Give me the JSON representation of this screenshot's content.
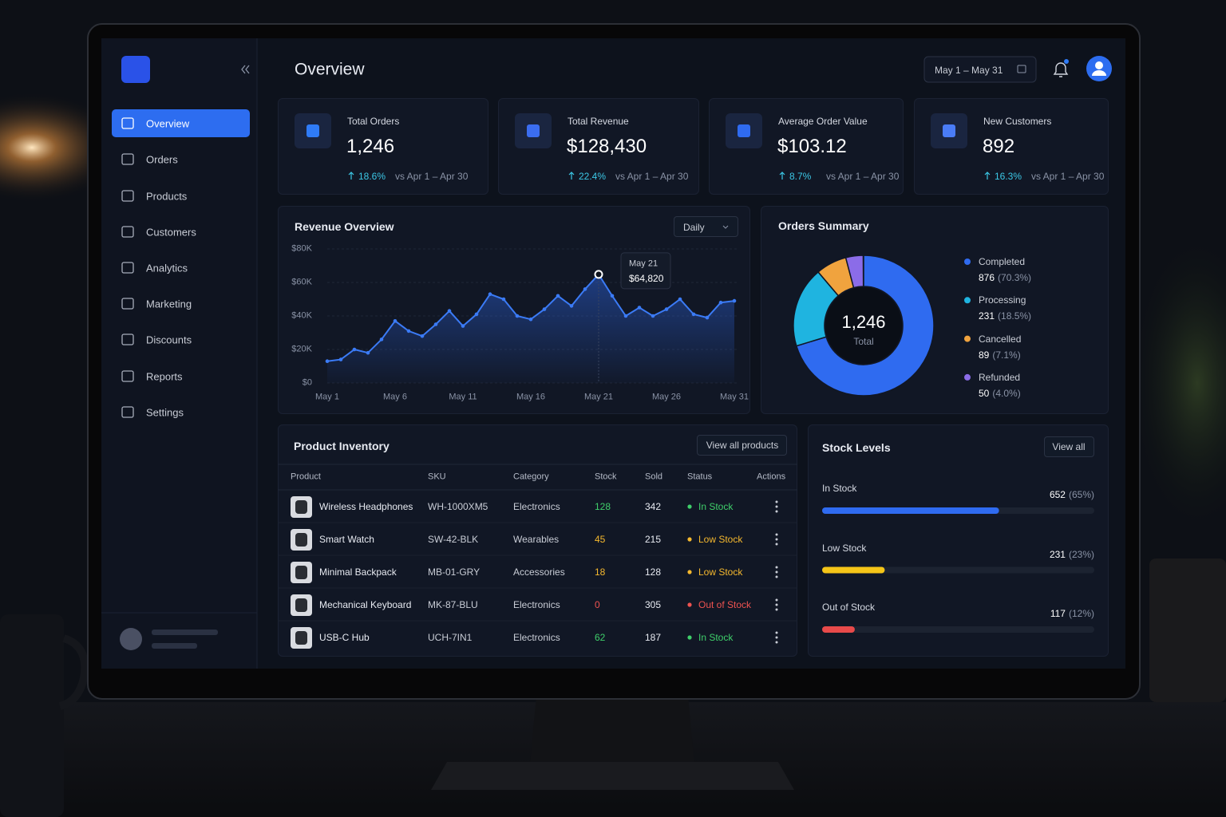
{
  "sidebar": {
    "nav": [
      "Overview",
      "Orders",
      "Products",
      "Customers",
      "Analytics",
      "Marketing",
      "Discounts",
      "Reports",
      "Settings"
    ]
  },
  "header": {
    "title": "Overview",
    "date_range": "May 1 – May 31"
  },
  "kpis": [
    {
      "label": "Total Orders",
      "value": "1,246",
      "change": "18.6%",
      "comparison": "vs Apr 1 – Apr 30"
    },
    {
      "label": "Total Revenue",
      "value": "$128,430",
      "change": "22.4%",
      "comparison": "vs Apr 1 – Apr 30"
    },
    {
      "label": "Average Order Value",
      "value": "$103.12",
      "change": "8.7%",
      "comparison": "vs Apr 1 – Apr 30"
    },
    {
      "label": "New Customers",
      "value": "892",
      "change": "16.3%",
      "comparison": "vs Apr 1 – Apr 30"
    }
  ],
  "revenue_overview": {
    "type": "line",
    "title": "Revenue Overview",
    "period": "Daily",
    "categories": [
      "May 1",
      null,
      null,
      null,
      null,
      "May 6",
      null,
      null,
      null,
      null,
      "May 11",
      null,
      null,
      null,
      null,
      "May 16",
      null,
      null,
      null,
      null,
      "May 21",
      null,
      null,
      null,
      null,
      "May 26",
      null,
      null,
      null,
      null,
      "May 31"
    ],
    "values": [
      13000,
      14000,
      20000,
      18000,
      26000,
      37000,
      31000,
      28000,
      35000,
      43000,
      34000,
      41000,
      53000,
      50000,
      40000,
      38000,
      44000,
      52000,
      46000,
      56000,
      64820,
      52000,
      40000,
      45000,
      40000,
      44000,
      50000,
      41000,
      39000,
      48000,
      49000
    ],
    "color": "#3b7bf6",
    "ylim": [
      0,
      80000
    ],
    "yticks": [
      {
        "value": 0,
        "label": "$0"
      },
      {
        "value": 20000,
        "label": "$20K"
      },
      {
        "value": 40000,
        "label": "$40K"
      },
      {
        "value": 60000,
        "label": "$60K"
      },
      {
        "value": 80000,
        "label": "$80K"
      }
    ],
    "grid": true,
    "tooltip": {
      "value": 64820,
      "label": "$64,820"
    }
  },
  "orders_summary": {
    "type": "pie",
    "title": "Orders Summary",
    "total": "1,246",
    "total_label": "Total",
    "segments": [
      {
        "name": "Completed",
        "value": 876,
        "percent": 70.3,
        "percent_label": "(70.3%)",
        "color": "#2f6bf0"
      },
      {
        "name": "Processing",
        "value": 231,
        "percent": 18.5,
        "percent_label": "(18.5%)",
        "color": "#1fb4e0"
      },
      {
        "name": "Cancelled",
        "value": 89,
        "percent": 7.1,
        "percent_label": "(7.1%)",
        "color": "#f0a33e"
      },
      {
        "name": "Refunded",
        "value": 50,
        "percent": 4.0,
        "percent_label": "(4.0%)",
        "color": "#8b6ce8"
      }
    ]
  },
  "inventory": {
    "title": "Product Inventory",
    "button": "View all products",
    "columns": [
      "Product",
      "SKU",
      "Category",
      "Stock",
      "Sold",
      "Status",
      "Actions"
    ],
    "rows": [
      {
        "product": "Wireless Headphones",
        "sku": "WH-1000XM5",
        "category": "Electronics",
        "stock": 128,
        "sold": 342,
        "status": "In Stock",
        "color": "#3fcf6a"
      },
      {
        "product": "Smart Watch",
        "sku": "SW-42-BLK",
        "category": "Wearables",
        "stock": 45,
        "sold": 215,
        "status": "Low Stock",
        "color": "#f5b82e"
      },
      {
        "product": "Minimal Backpack",
        "sku": "MB-01-GRY",
        "category": "Accessories",
        "stock": 18,
        "sold": 128,
        "status": "Low Stock",
        "color": "#f5b82e"
      },
      {
        "product": "Mechanical Keyboard",
        "sku": "MK-87-BLU",
        "category": "Electronics",
        "stock": 0,
        "sold": 305,
        "status": "Out of Stock",
        "color": "#ef5350"
      },
      {
        "product": "USB-C Hub",
        "sku": "UCH-7IN1",
        "category": "Electronics",
        "stock": 62,
        "sold": 187,
        "status": "In Stock",
        "color": "#3fcf6a"
      }
    ]
  },
  "stock_levels": {
    "title": "Stock Levels",
    "button": "View all",
    "items": [
      {
        "name": "In Stock",
        "value": 652,
        "percent": 65,
        "percent_label": "(65%)",
        "color": "#2f6bf0"
      },
      {
        "name": "Low Stock",
        "value": 231,
        "percent": 23,
        "percent_label": "(23%)",
        "color": "#f5c518"
      },
      {
        "name": "Out of Stock",
        "value": 117,
        "percent": 12,
        "percent_label": "(12%)",
        "color": "#e84a4a"
      }
    ]
  }
}
